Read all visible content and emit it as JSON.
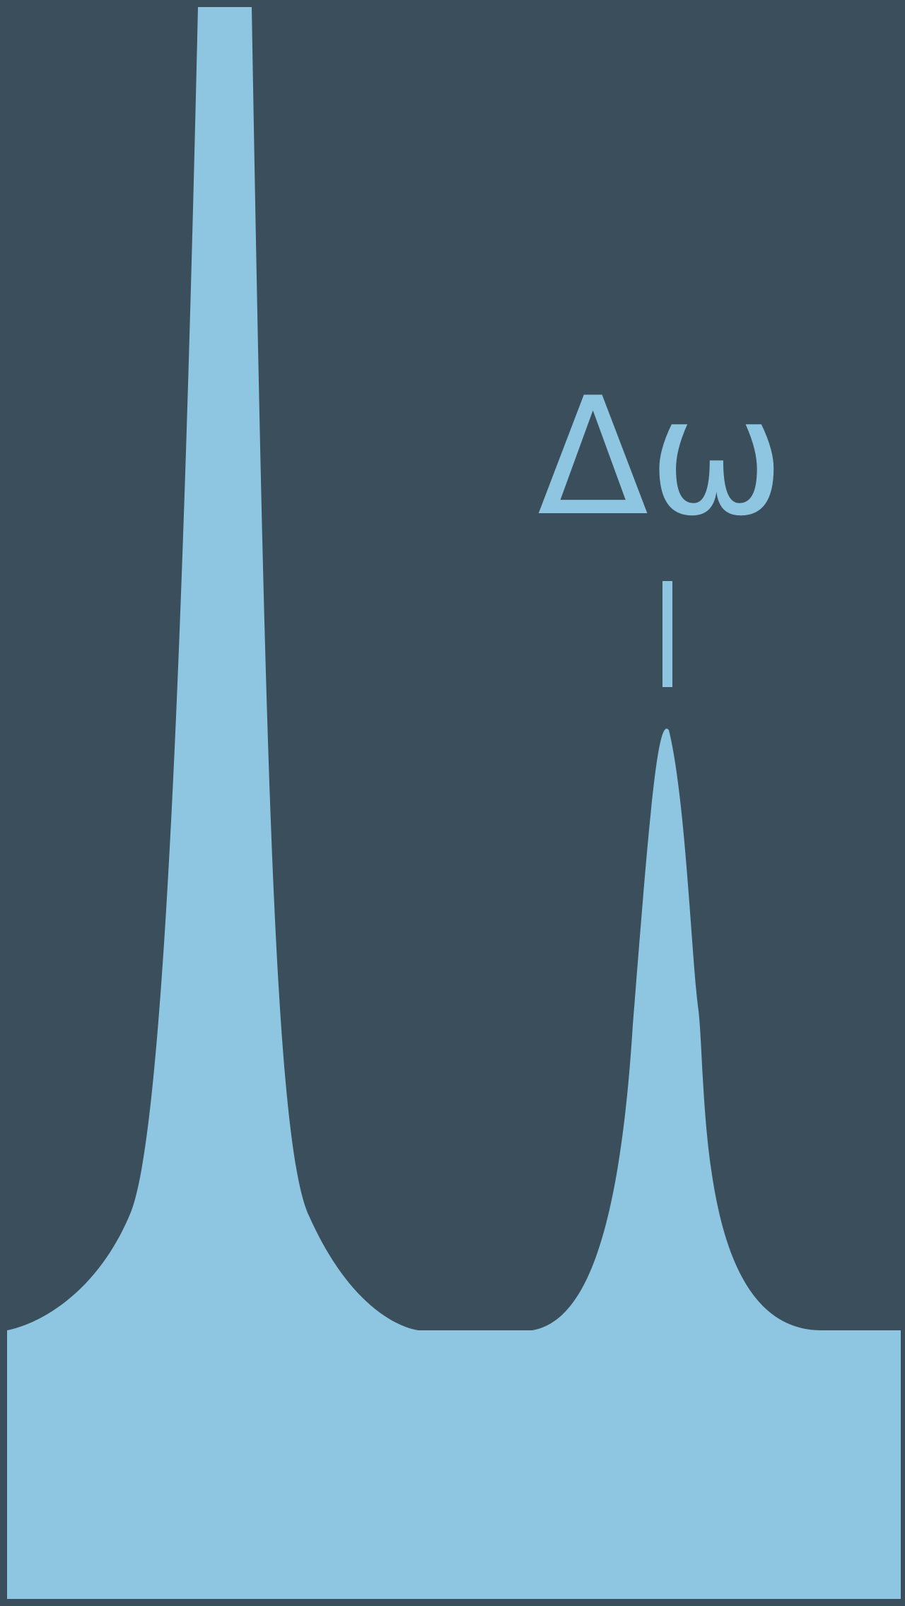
{
  "diagram": {
    "label": "Δω",
    "colors": {
      "background": "#3a4f5b",
      "fill": "#8ec5e0"
    }
  }
}
